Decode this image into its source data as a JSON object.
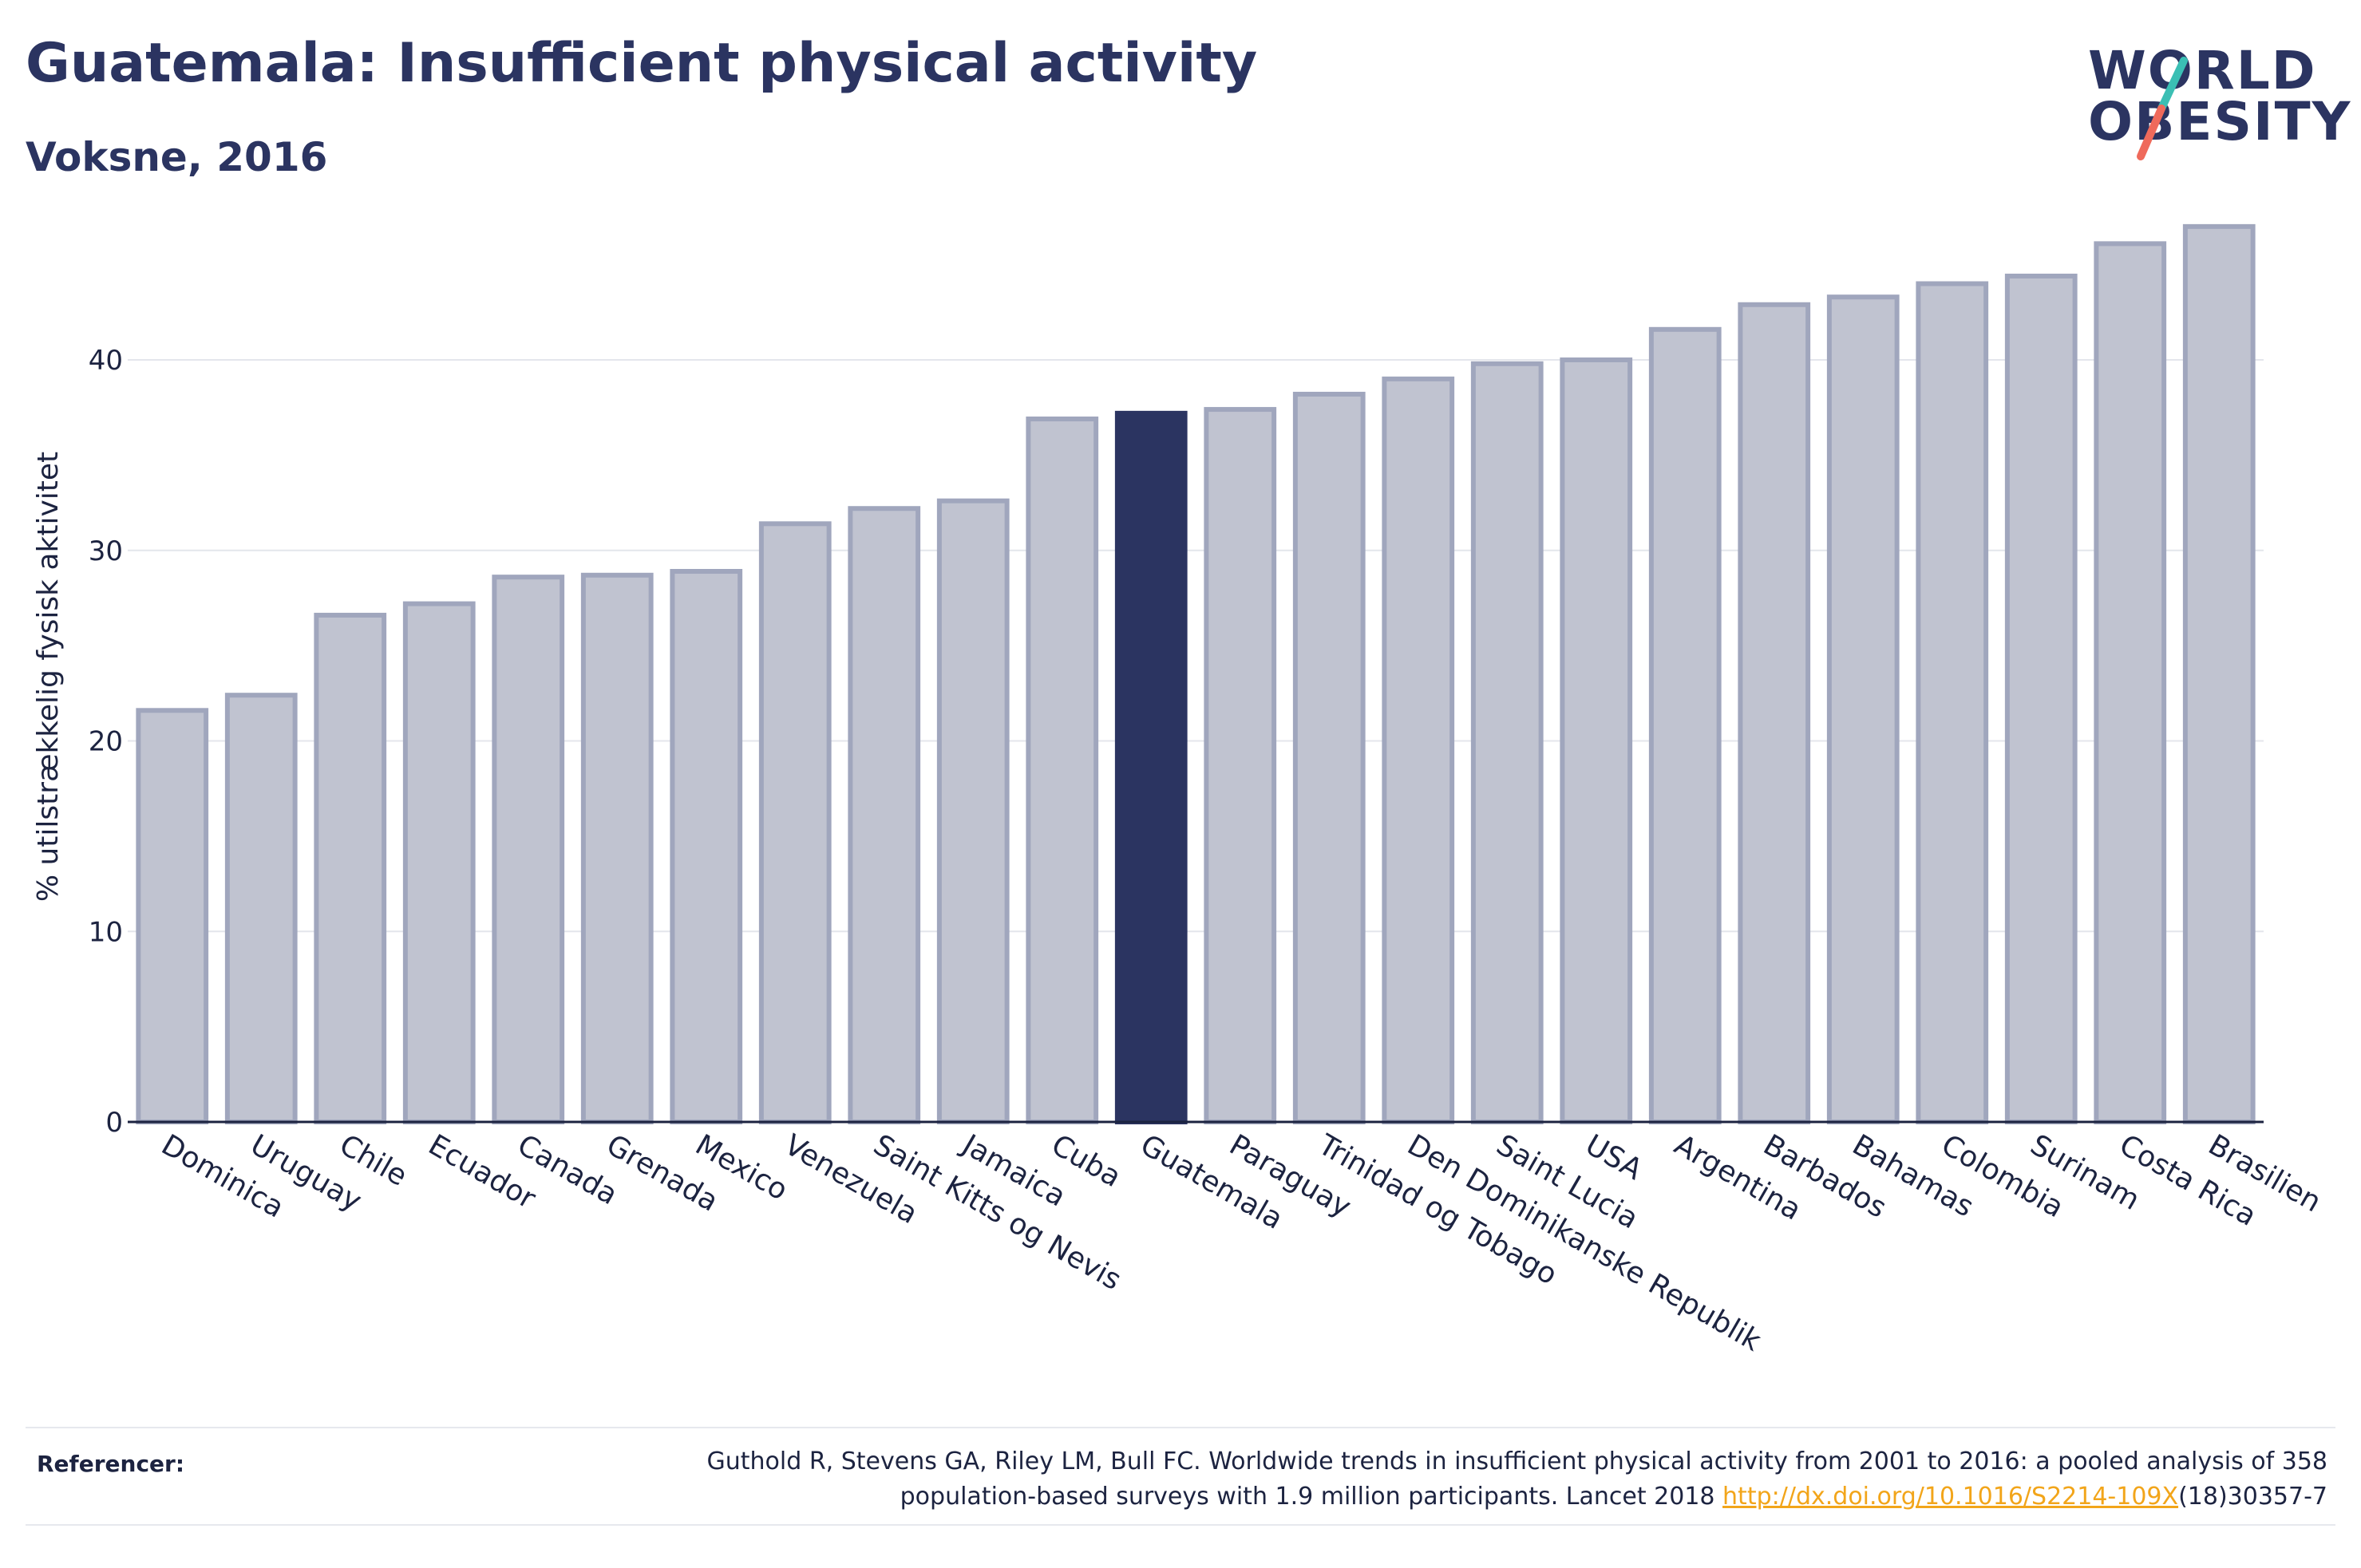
{
  "title": "Guatemala: Insufficient physical activity",
  "subtitle": "Voksne, 2016",
  "logo": {
    "line1": "WORLD",
    "line2": "OBESITY",
    "slash_colors": [
      "#3bbfb4",
      "#ef6a5b"
    ]
  },
  "colors": {
    "bar_default_fill": "#c0c3d0",
    "bar_default_stroke": "#a0a6bd",
    "bar_highlight": "#2b3461",
    "axis": "#1c2340",
    "grid": "#e4e6ec"
  },
  "chart_data": {
    "type": "bar",
    "ylabel": "% utilstrækkelig fysisk aktivitet",
    "ylim": [
      0,
      48
    ],
    "yticks": [
      0,
      10,
      20,
      30,
      40
    ],
    "grid": true,
    "highlight": "Guatemala",
    "categories": [
      "Dominica",
      "Uruguay",
      "Chile",
      "Ecuador",
      "Canada",
      "Grenada",
      "Mexico",
      "Venezuela",
      "Saint Kitts og Nevis",
      "Jamaica",
      "Cuba",
      "Guatemala",
      "Paraguay",
      "Trinidad og Tobago",
      "Den Dominikanske Republik",
      "Saint Lucia",
      "USA",
      "Argentina",
      "Barbados",
      "Bahamas",
      "Colombia",
      "Surinam",
      "Costa Rica",
      "Brasilien"
    ],
    "values": [
      21.6,
      22.4,
      26.6,
      27.2,
      28.6,
      28.7,
      28.9,
      31.4,
      32.2,
      32.6,
      36.9,
      37.2,
      37.4,
      38.2,
      39.0,
      39.8,
      40.0,
      41.6,
      42.9,
      43.3,
      44.0,
      44.4,
      46.1,
      47.0
    ]
  },
  "references": {
    "label": "Referencer:",
    "text_line1": "Guthold R, Stevens GA, Riley LM, Bull FC. Worldwide trends in insufficient physical activity from 2001 to 2016: a pooled analysis of 358",
    "text_line2_start": "population-based surveys with 1.9 million participants. Lancet 2018 ",
    "link": "http://dx.doi.org/10.1016/S2214-109X",
    "text_line2_end": "(18)30357-7"
  }
}
